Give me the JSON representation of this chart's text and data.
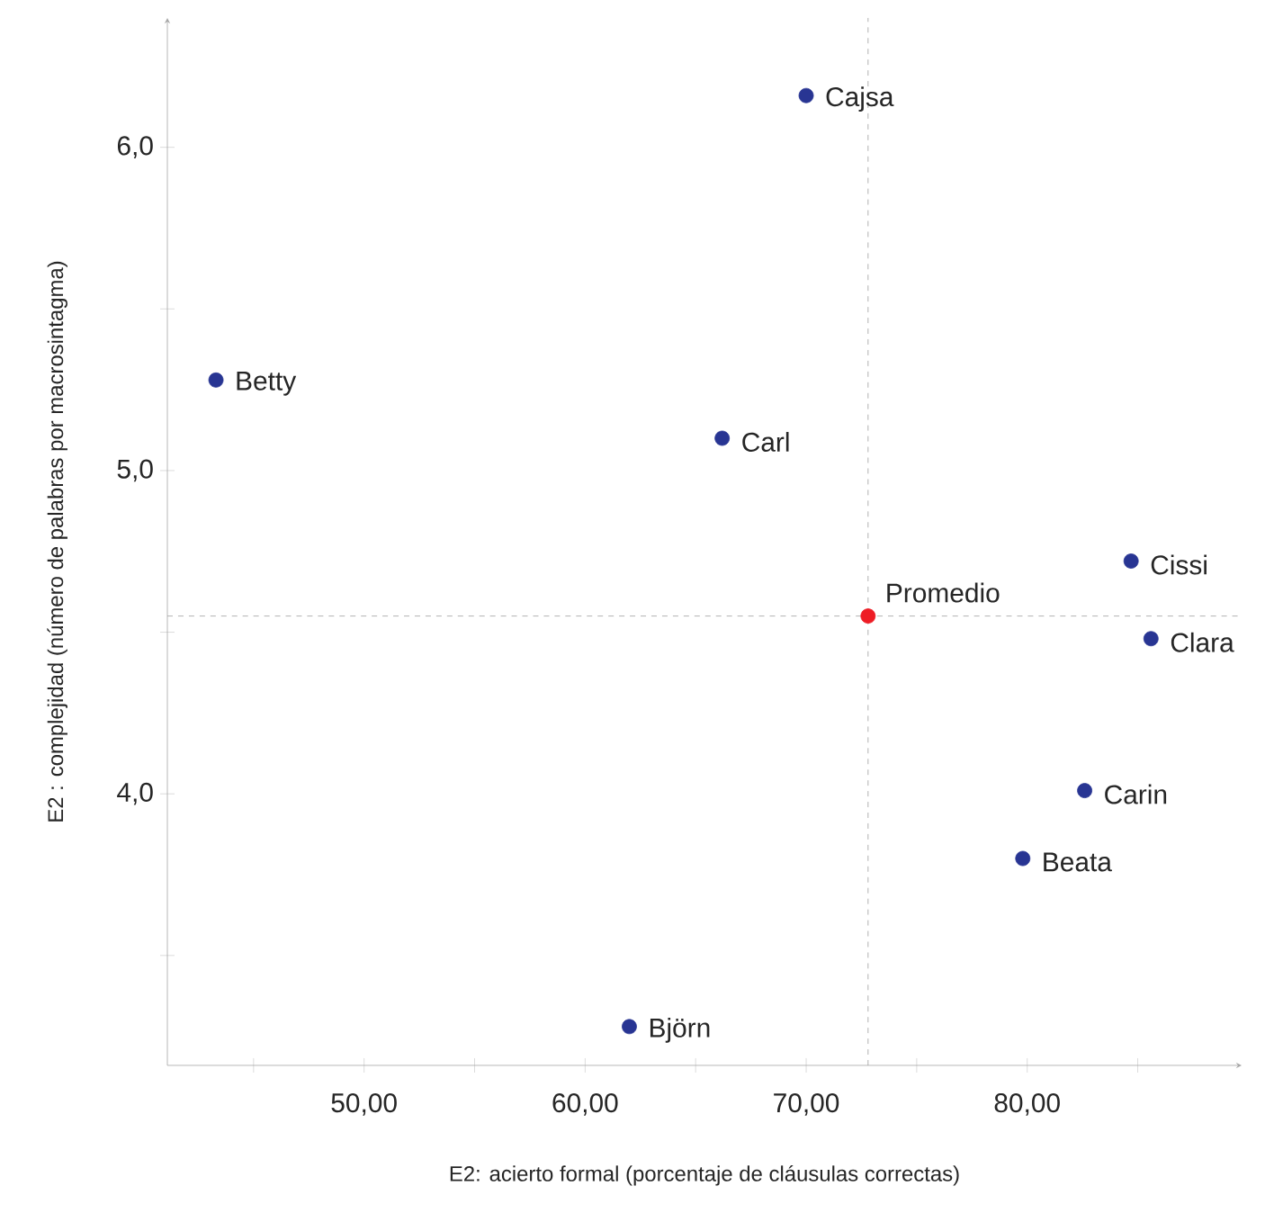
{
  "chart_data": {
    "type": "scatter",
    "xlabel": "E2: acierto formal (porcentaje de cláusulas correctas)",
    "ylabel": "E2 : complejidad (número de palabras por macrosintagma)",
    "series": [
      {
        "color": "#283593",
        "x": [
          43.3,
          70.0,
          66.2,
          84.7,
          85.6,
          82.6,
          79.8,
          62.0
        ],
        "values": [
          5.28,
          6.16,
          5.1,
          4.72,
          4.48,
          4.01,
          3.8,
          3.28
        ]
      },
      {
        "name": "Promedio",
        "color": "#ee1c25",
        "x": [
          72.8
        ],
        "values": [
          4.55
        ]
      }
    ],
    "annotations": [
      {
        "text": "Betty",
        "x": 43.3,
        "y": 5.28
      },
      {
        "text": "Cajsa",
        "x": 70.0,
        "y": 6.16
      },
      {
        "text": "Carl",
        "x": 66.2,
        "y": 5.1
      },
      {
        "text": "Cissi",
        "x": 84.7,
        "y": 4.72
      },
      {
        "text": "Clara",
        "x": 85.6,
        "y": 4.48
      },
      {
        "text": "Carin",
        "x": 82.6,
        "y": 4.01
      },
      {
        "text": "Beata",
        "x": 79.8,
        "y": 3.8
      },
      {
        "text": "Björn",
        "x": 62.0,
        "y": 3.28
      }
    ],
    "ref_lines": [
      {
        "axis": "x",
        "value": 72.8,
        "line_style": "dashed",
        "color": "#9e9e9e"
      },
      {
        "axis": "y",
        "value": 4.55,
        "line_style": "dashed",
        "color": "#9e9e9e"
      }
    ],
    "xlim": [
      41.1,
      89.7
    ],
    "ylim": [
      3.16,
      6.4
    ],
    "xticks": [
      {
        "value": 45,
        "label": null
      },
      {
        "value": 50,
        "label": "50,00"
      },
      {
        "value": 55,
        "label": null
      },
      {
        "value": 60,
        "label": "60,00"
      },
      {
        "value": 65,
        "label": null
      },
      {
        "value": 70,
        "label": "70,00"
      },
      {
        "value": 75,
        "label": null
      },
      {
        "value": 80,
        "label": "80,00"
      },
      {
        "value": 85,
        "label": null
      }
    ],
    "yticks": [
      {
        "value": 3.5,
        "label": null
      },
      {
        "value": 4,
        "label": "4,0"
      },
      {
        "value": 4.5,
        "label": null
      },
      {
        "value": 5,
        "label": "5,0"
      },
      {
        "value": 5.5,
        "label": null
      },
      {
        "value": 6,
        "label": "6,0"
      }
    ],
    "grid": false,
    "legend": false,
    "marker": "circle"
  }
}
